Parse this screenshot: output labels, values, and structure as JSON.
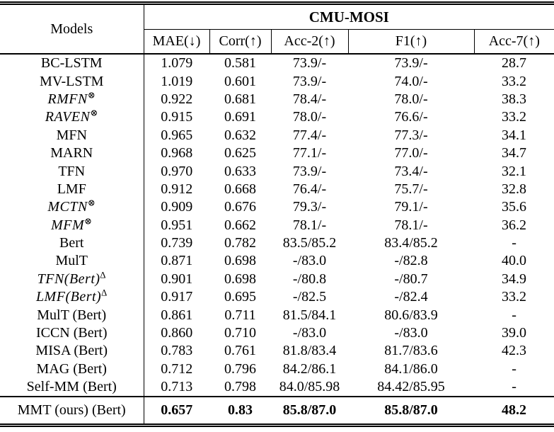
{
  "table": {
    "models_header": "Models",
    "dataset_title": "CMU-MOSI",
    "columns": [
      "MAE(↓)",
      "Corr(↑)",
      "Acc-2(↑)",
      "F1(↑)",
      "Acc-7(↑)"
    ],
    "rows": [
      {
        "model": "BC-LSTM",
        "values": [
          "1.079",
          "0.581",
          "73.9/-",
          "73.9/-",
          "28.7"
        ]
      },
      {
        "model": "MV-LSTM",
        "values": [
          "1.019",
          "0.601",
          "73.9/-",
          "74.0/-",
          "33.2"
        ]
      },
      {
        "model": "RMFN",
        "sup": "⊗",
        "math": true,
        "values": [
          "0.922",
          "0.681",
          "78.4/-",
          "78.0/-",
          "38.3"
        ]
      },
      {
        "model": "RAVEN",
        "sup": "⊗",
        "math": true,
        "values": [
          "0.915",
          "0.691",
          "78.0/-",
          "76.6/-",
          "33.2"
        ]
      },
      {
        "model": "MFN",
        "values": [
          "0.965",
          "0.632",
          "77.4/-",
          "77.3/-",
          "34.1"
        ]
      },
      {
        "model": "MARN",
        "values": [
          "0.968",
          "0.625",
          "77.1/-",
          "77.0/-",
          "34.7"
        ]
      },
      {
        "model": "TFN",
        "values": [
          "0.970",
          "0.633",
          "73.9/-",
          "73.4/-",
          "32.1"
        ]
      },
      {
        "model": "LMF",
        "values": [
          "0.912",
          "0.668",
          "76.4/-",
          "75.7/-",
          "32.8"
        ]
      },
      {
        "model": "MCTN",
        "sup": "⊗",
        "math": true,
        "values": [
          "0.909",
          "0.676",
          "79.3/-",
          "79.1/-",
          "35.6"
        ]
      },
      {
        "model": "MFM",
        "sup": "⊗",
        "math": true,
        "values": [
          "0.951",
          "0.662",
          "78.1/-",
          "78.1/-",
          "36.2"
        ]
      },
      {
        "model": "Bert",
        "values": [
          "0.739",
          "0.782",
          "83.5/85.2",
          "83.4/85.2",
          "-"
        ]
      },
      {
        "model": "MulT",
        "values": [
          "0.871",
          "0.698",
          "-/83.0",
          "-/82.8",
          "40.0"
        ]
      },
      {
        "model": "TFN(Bert)",
        "sup": "∆",
        "math": true,
        "values": [
          "0.901",
          "0.698",
          "-/80.8",
          "-/80.7",
          "34.9"
        ]
      },
      {
        "model": "LMF(Bert)",
        "sup": "∆",
        "math": true,
        "values": [
          "0.917",
          "0.695",
          "-/82.5",
          "-/82.4",
          "33.2"
        ]
      },
      {
        "model": "MulT (Bert)",
        "values": [
          "0.861",
          "0.711",
          "81.5/84.1",
          "80.6/83.9",
          "-"
        ]
      },
      {
        "model": "ICCN (Bert)",
        "values": [
          "0.860",
          "0.710",
          "-/83.0",
          "-/83.0",
          "39.0"
        ]
      },
      {
        "model": "MISA (Bert)",
        "values": [
          "0.783",
          "0.761",
          "81.8/83.4",
          "81.7/83.6",
          "42.3"
        ]
      },
      {
        "model": "MAG (Bert)",
        "values": [
          "0.712",
          "0.796",
          "84.2/86.1",
          "84.1/86.0",
          "-"
        ]
      },
      {
        "model": "Self-MM (Bert)",
        "values": [
          "0.713",
          "0.798",
          "84.0/85.98",
          "84.42/85.95",
          "-"
        ]
      },
      {
        "model": "MMT (ours) (Bert)",
        "final": true,
        "values": [
          "0.657",
          "0.83",
          "85.8/87.0",
          "85.8/87.0",
          "48.2"
        ]
      }
    ]
  }
}
